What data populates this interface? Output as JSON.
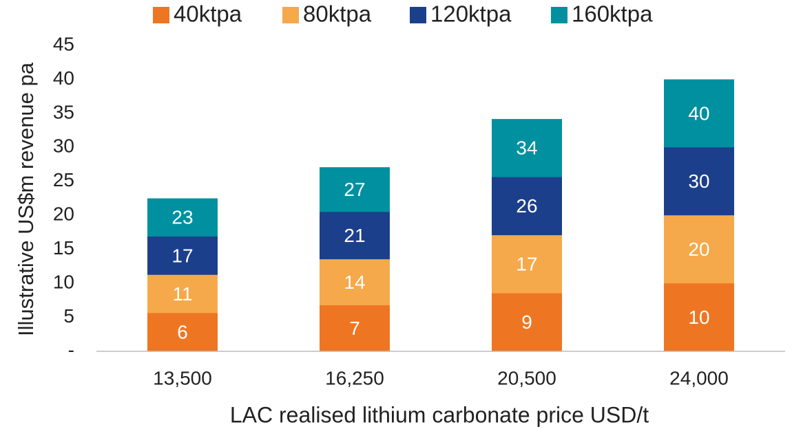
{
  "chart_data": {
    "type": "bar",
    "overlap": true,
    "xlabel": "LAC realised lithium carbonate price USD/t",
    "ylabel": "Illustrative US$m revenue pa",
    "categories": [
      "13,500",
      "16,250",
      "20,500",
      "24,000"
    ],
    "series": [
      {
        "name": "40ktpa",
        "color": "#EE7623",
        "values": [
          5.63,
          6.77,
          8.54,
          10
        ],
        "value_labels": [
          "6",
          "7",
          "9",
          "10"
        ]
      },
      {
        "name": "80ktpa",
        "color": "#F5A94A",
        "values": [
          11.25,
          13.54,
          17.08,
          20
        ],
        "value_labels": [
          "11",
          "14",
          "17",
          "20"
        ]
      },
      {
        "name": "120ktpa",
        "color": "#1B3F8B",
        "values": [
          16.88,
          20.5,
          25.63,
          30
        ],
        "value_labels": [
          "17",
          "21",
          "26",
          "30"
        ]
      },
      {
        "name": "160ktpa",
        "color": "#0090A0",
        "values": [
          22.5,
          27.08,
          34.17,
          40
        ],
        "value_labels": [
          "23",
          "27",
          "34",
          "40"
        ]
      }
    ],
    "ylim": [
      0,
      45
    ],
    "yticks": [
      {
        "value": 0,
        "label": "-"
      },
      5,
      10,
      15,
      20,
      25,
      30,
      35,
      40,
      45
    ],
    "legend": "top"
  }
}
